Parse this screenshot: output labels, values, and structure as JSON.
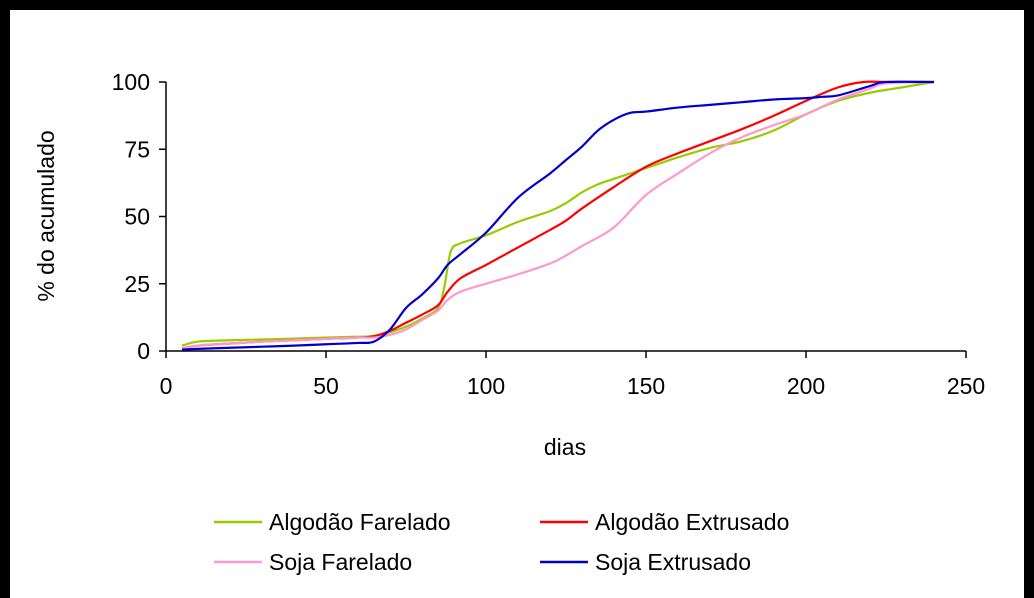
{
  "chart_data": {
    "type": "line",
    "title": "",
    "xlabel": "dias",
    "ylabel": "% do acumulado",
    "xlim": [
      0,
      250
    ],
    "ylim": [
      0,
      100
    ],
    "xticks": [
      "0",
      "50",
      "100",
      "150",
      "200",
      "250"
    ],
    "yticks": [
      "0",
      "25",
      "50",
      "75",
      "100"
    ],
    "grid": false,
    "legend_position": "bottom",
    "series": [
      {
        "name": "Algodão Farelado",
        "color": "#99cc00",
        "x": [
          5,
          10,
          20,
          30,
          40,
          50,
          60,
          65,
          70,
          75,
          80,
          85,
          87,
          89,
          92,
          100,
          110,
          120,
          125,
          130,
          135,
          140,
          150,
          160,
          170,
          180,
          190,
          200,
          210,
          220,
          230,
          240
        ],
        "y": [
          2,
          3.5,
          4,
          4.3,
          4.6,
          5,
          5.3,
          5.6,
          7,
          9,
          12,
          16,
          24,
          37,
          40,
          43,
          48,
          52,
          55,
          59,
          62,
          64,
          68,
          72,
          75.5,
          78,
          82,
          88,
          93,
          96,
          98,
          100
        ]
      },
      {
        "name": "Algodão Extrusado",
        "color": "#ff0000",
        "x": [
          5,
          10,
          20,
          30,
          40,
          50,
          60,
          65,
          70,
          75,
          80,
          85,
          88,
          92,
          100,
          110,
          120,
          125,
          130,
          140,
          150,
          160,
          170,
          180,
          190,
          200,
          210,
          218,
          225,
          240
        ],
        "y": [
          1,
          2,
          2.8,
          3.5,
          4,
          4.5,
          5,
          5.5,
          7.5,
          10.5,
          13.5,
          17,
          22,
          27,
          32,
          38.5,
          45,
          48.5,
          53,
          61,
          68.5,
          73.5,
          78,
          82.5,
          87.5,
          93,
          98,
          100,
          100,
          100
        ]
      },
      {
        "name": "Soja Farelado",
        "color": "#ff99cc",
        "x": [
          5,
          10,
          20,
          30,
          40,
          50,
          60,
          65,
          70,
          75,
          80,
          85,
          88,
          92,
          100,
          110,
          120,
          125,
          130,
          140,
          150,
          160,
          170,
          180,
          190,
          200,
          210,
          220,
          225,
          240
        ],
        "y": [
          1,
          2,
          2.8,
          3.5,
          4,
          4.5,
          5,
          5,
          6,
          8,
          11.5,
          15,
          19,
          22,
          25,
          28.5,
          32.5,
          35.5,
          39,
          46,
          58,
          66,
          73.5,
          79.5,
          84,
          88,
          93.5,
          97.5,
          99.5,
          100
        ]
      },
      {
        "name": "Soja Extrusado",
        "color": "#0000cc",
        "x": [
          5,
          10,
          20,
          30,
          40,
          50,
          60,
          65,
          70,
          75,
          80,
          85,
          88,
          92,
          100,
          110,
          120,
          125,
          130,
          135,
          140,
          145,
          150,
          160,
          170,
          180,
          190,
          200,
          205,
          210,
          220,
          225,
          240
        ],
        "y": [
          0.5,
          0.8,
          1.2,
          1.6,
          2,
          2.5,
          3,
          3.5,
          8,
          16,
          21,
          27,
          32,
          36,
          44,
          57,
          66,
          71,
          76,
          82,
          86,
          88.5,
          89,
          90.5,
          91.5,
          92.5,
          93.5,
          94,
          94.5,
          95,
          98.5,
          100,
          100
        ]
      }
    ]
  }
}
